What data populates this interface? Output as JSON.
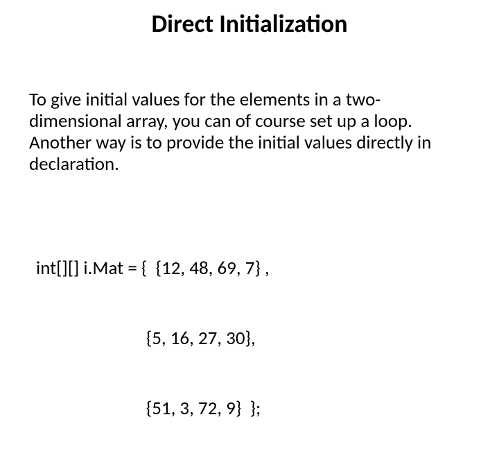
{
  "title": "Direct Initialization",
  "paragraph": "To give initial values for the elements in a two-dimensional array, you can of course set up a loop. Another way is to provide the initial values directly in declaration.",
  "code": {
    "line1": "int[][] i.Mat = {  {12, 48, 69, 7} ,",
    "line2": "                          {5, 16, 27, 30},",
    "line3": "                          {51, 3, 72, 9}  };"
  },
  "style": {
    "background_color": "#ffffff",
    "text_color": "#000000",
    "title_fontsize": 36,
    "title_fontweight": 700,
    "body_fontsize": 27,
    "code_fontsize": 27,
    "font_family": "Calibri"
  }
}
